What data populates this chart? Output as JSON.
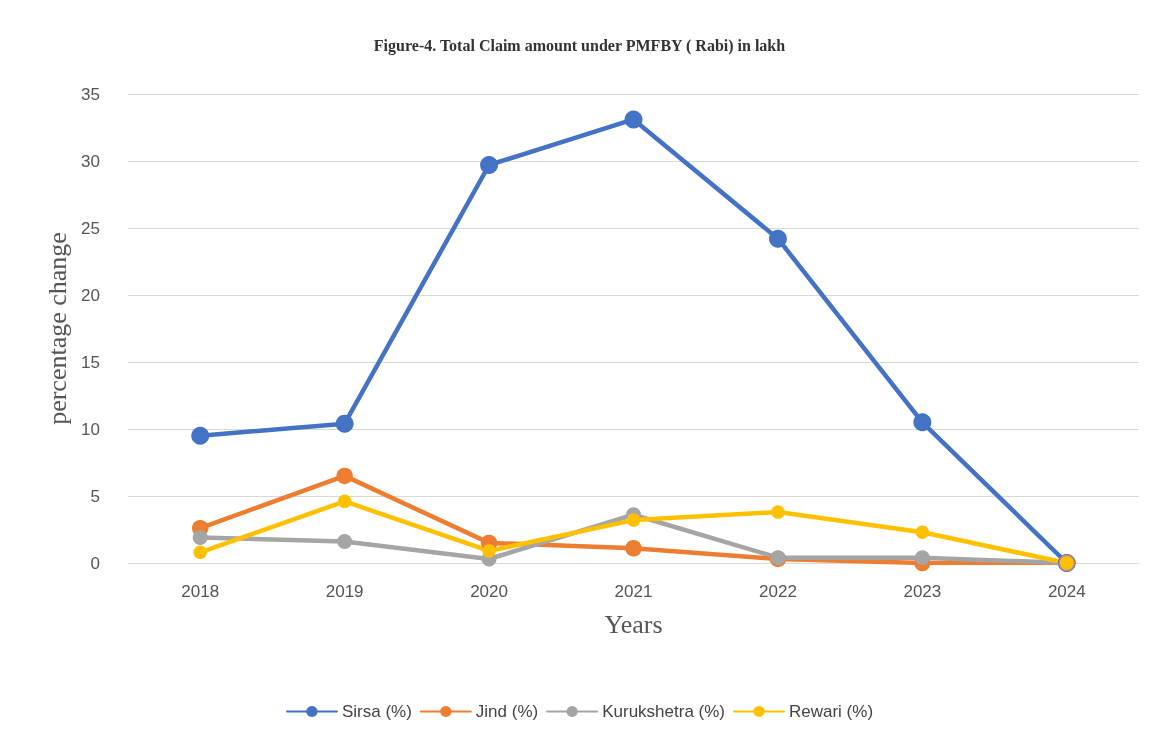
{
  "chart_data": {
    "type": "line",
    "title": "Figure-4. Total Claim amount under PMFBY ( Rabi) in lakh",
    "xlabel": "Years",
    "ylabel": "percentage change",
    "categories": [
      "2018",
      "2019",
      "2020",
      "2021",
      "2022",
      "2023",
      "2024"
    ],
    "series": [
      {
        "name": "Sirsa (%)",
        "color": "#4472c4",
        "values": [
          9.5,
          10.4,
          29.7,
          33.1,
          24.2,
          10.5,
          0
        ]
      },
      {
        "name": "Jind (%)",
        "color": "#ed7d31",
        "values": [
          2.6,
          6.5,
          1.5,
          1.1,
          0.3,
          0,
          0
        ]
      },
      {
        "name": "Kurukshetra (%)",
        "color": "#a5a5a5",
        "values": [
          1.9,
          1.6,
          0.3,
          3.6,
          0.4,
          0.4,
          0
        ]
      },
      {
        "name": "Rewari (%)",
        "color": "#ffc000",
        "values": [
          0.8,
          4.6,
          0.9,
          3.2,
          3.8,
          2.3,
          0
        ]
      }
    ],
    "ylim": [
      0,
      35
    ],
    "yticks": [
      0,
      5,
      10,
      15,
      20,
      25,
      30,
      35
    ],
    "grid": "y",
    "legend": "bottom",
    "marker": "circle",
    "line_style": "solid"
  }
}
